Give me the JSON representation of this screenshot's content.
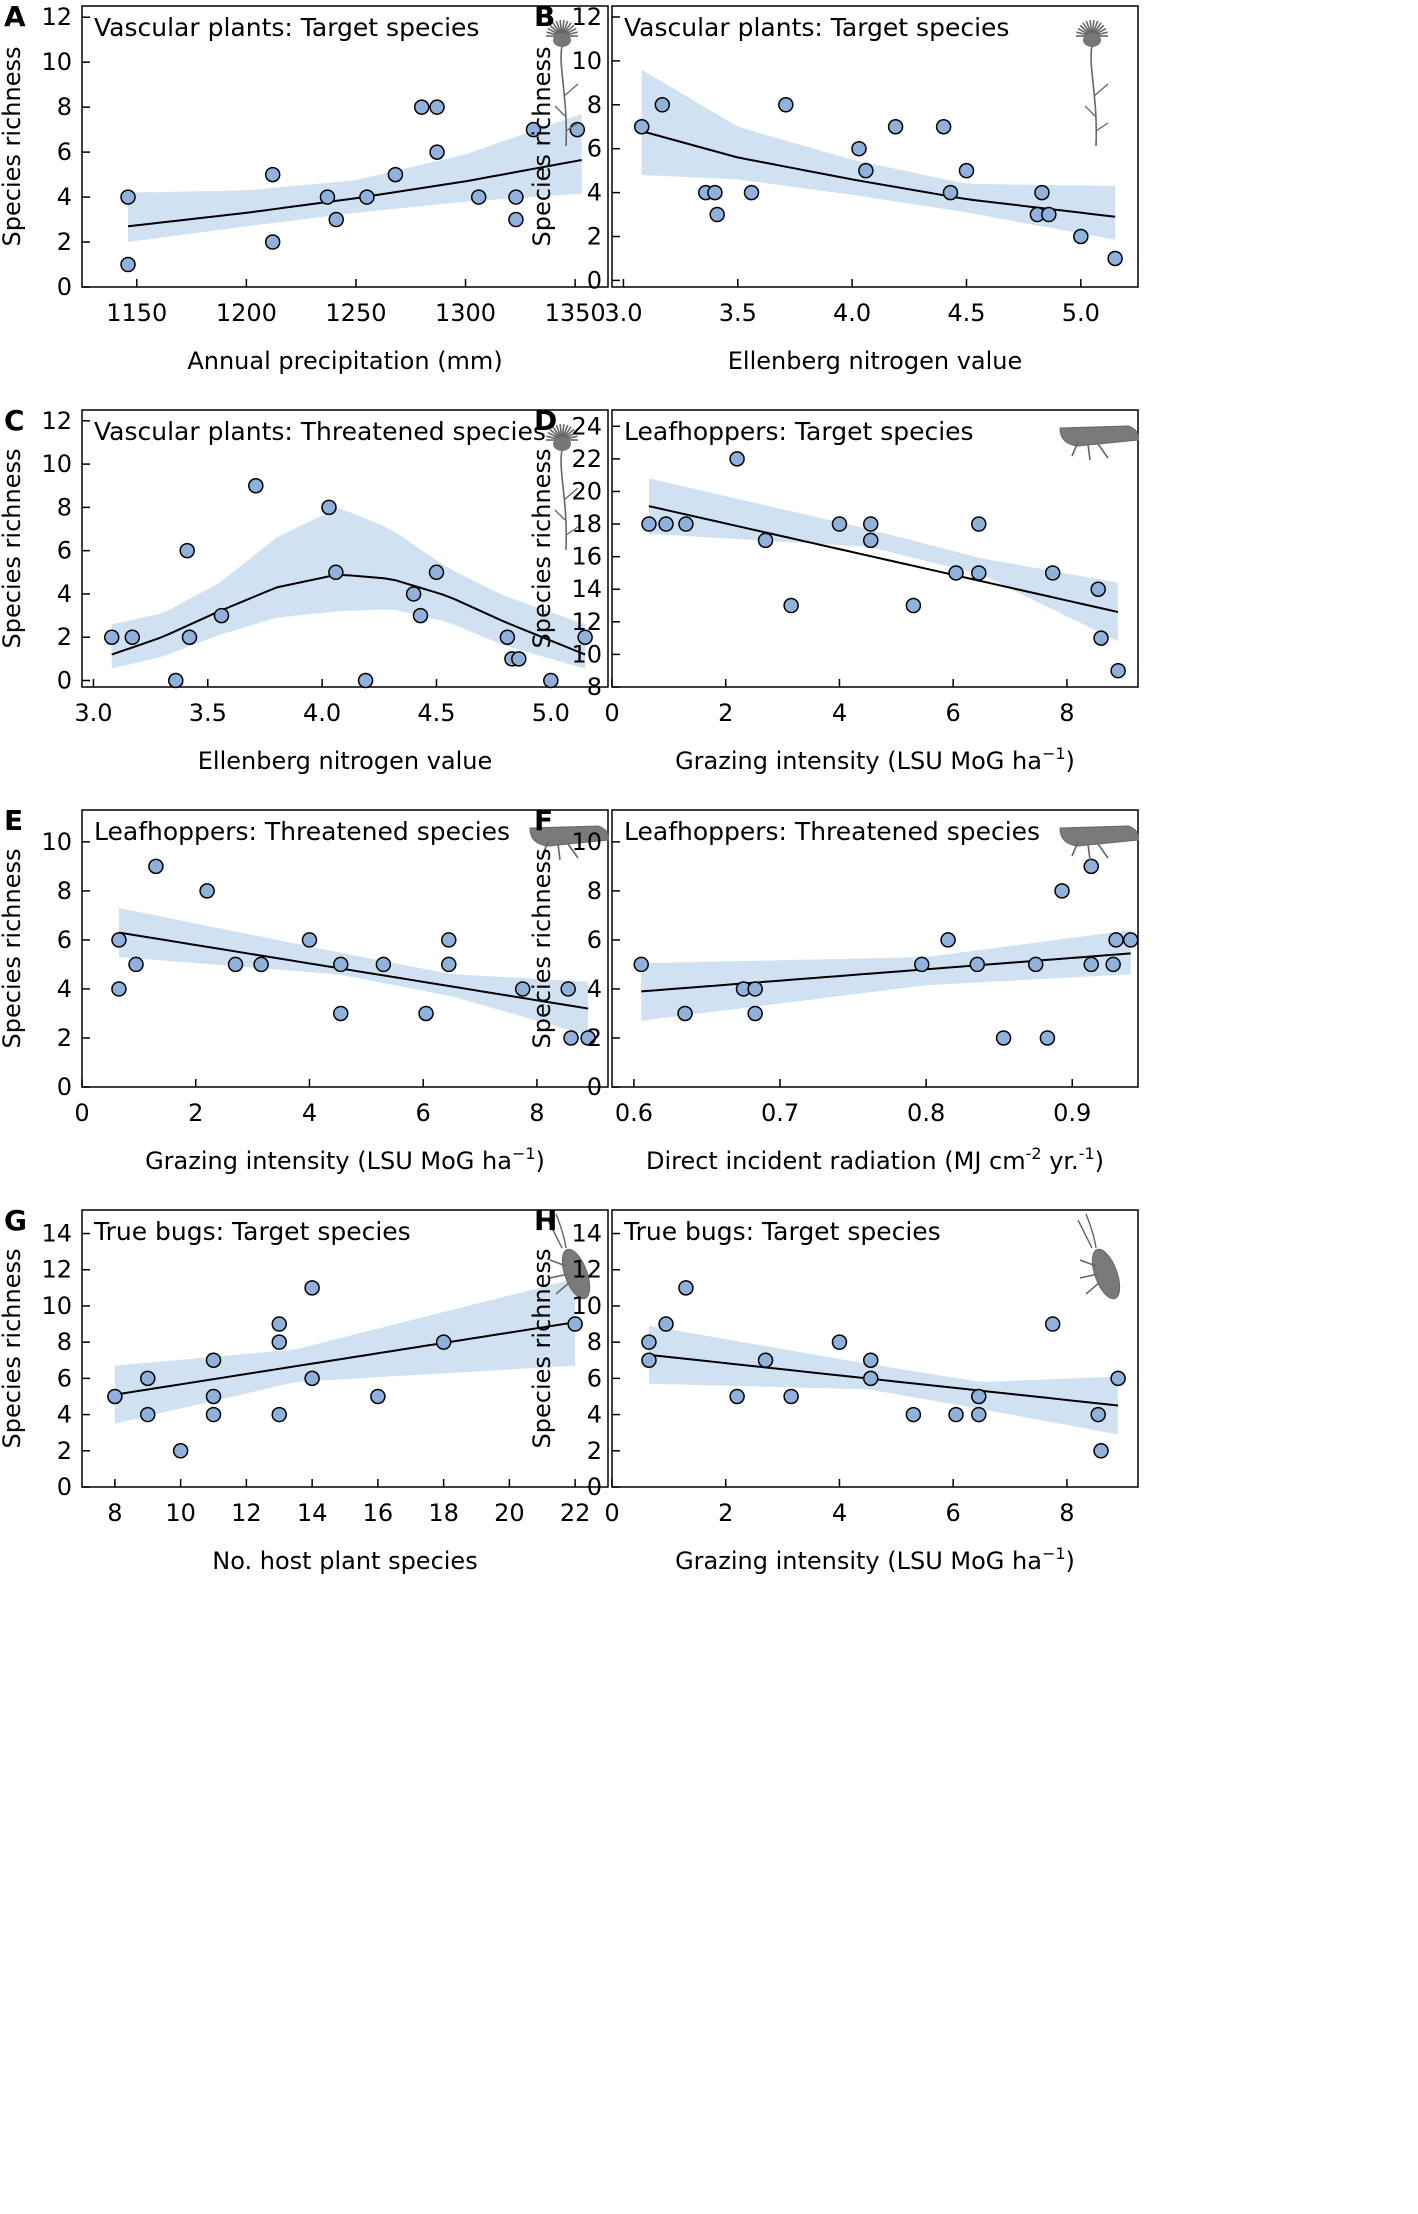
{
  "chart_data": [
    {
      "type": "scatter",
      "panel": "A",
      "title": "Vascular plants: Target species",
      "xlabel": "Annual precipitation (mm)",
      "ylabel": "Species richness",
      "xlim": [
        1125,
        1365
      ],
      "ylim": [
        0,
        12.5
      ],
      "xticks": [
        1150,
        1200,
        1250,
        1300,
        1350
      ],
      "yticks": [
        0,
        2,
        4,
        6,
        8,
        10,
        12
      ],
      "icon": "plant-icon",
      "points": {
        "x": [
          1146,
          1146,
          1212,
          1212,
          1237,
          1241,
          1255,
          1268,
          1280,
          1287,
          1287,
          1306,
          1323,
          1323,
          1331,
          1351
        ],
        "y": [
          4,
          1,
          5,
          2,
          4,
          3,
          4,
          5,
          8,
          8,
          6,
          4,
          4,
          3,
          7,
          7
        ]
      },
      "fit": {
        "x": [
          1146,
          1200,
          1250,
          1300,
          1353
        ],
        "y": [
          2.7,
          3.3,
          3.95,
          4.7,
          5.65
        ]
      },
      "ci_lower": [
        2.0,
        2.7,
        3.3,
        3.8,
        4.15
      ],
      "ci_upper": [
        4.2,
        4.3,
        4.75,
        5.9,
        7.7
      ]
    },
    {
      "type": "scatter",
      "panel": "B",
      "title": "Vascular plants: Target species",
      "xlabel": "Ellenberg nitrogen value",
      "ylabel": "Species richness",
      "xlim": [
        2.95,
        5.25
      ],
      "ylim": [
        -0.3,
        12.5
      ],
      "xticks": [
        "3.0",
        "3.5",
        "4.0",
        "4.5",
        "5.0"
      ],
      "yticks": [
        0,
        2,
        4,
        6,
        8,
        10,
        12
      ],
      "icon": "plant-icon",
      "points": {
        "x": [
          3.08,
          3.17,
          3.36,
          3.4,
          3.41,
          3.56,
          3.71,
          4.03,
          4.06,
          4.19,
          4.4,
          4.43,
          4.5,
          4.81,
          4.83,
          4.86,
          5.0,
          5.15
        ],
        "y": [
          7,
          8,
          4,
          4,
          3,
          4,
          8,
          6,
          5,
          7,
          7,
          4,
          5,
          3,
          4,
          3,
          2,
          1
        ]
      },
      "fit": {
        "x": [
          3.08,
          3.5,
          4.0,
          4.5,
          5.15
        ],
        "y": [
          6.8,
          5.6,
          4.6,
          3.7,
          2.9
        ]
      },
      "ci_lower": [
        4.8,
        4.6,
        3.9,
        3.1,
        1.85
      ],
      "ci_upper": [
        9.6,
        7.0,
        5.5,
        4.4,
        4.3
      ]
    },
    {
      "type": "scatter",
      "panel": "C",
      "title": "Vascular plants: Threatened species",
      "xlabel": "Ellenberg nitrogen value",
      "ylabel": "Species richness",
      "xlim": [
        2.95,
        5.25
      ],
      "ylim": [
        -0.3,
        12.5
      ],
      "xticks": [
        "3.0",
        "3.5",
        "4.0",
        "4.5",
        "5.0"
      ],
      "yticks": [
        0,
        2,
        4,
        6,
        8,
        10,
        12
      ],
      "icon": "plant-icon",
      "points": {
        "x": [
          3.08,
          3.17,
          3.36,
          3.41,
          3.42,
          3.56,
          3.71,
          4.03,
          4.06,
          4.19,
          4.4,
          4.43,
          4.5,
          4.81,
          4.83,
          4.86,
          5.0,
          5.15
        ],
        "y": [
          2,
          2,
          0,
          6,
          2,
          3,
          9,
          8,
          5,
          0,
          4,
          3,
          5,
          2,
          1,
          1,
          0,
          2
        ]
      },
      "fit": {
        "x": [
          3.08,
          3.3,
          3.55,
          3.8,
          4.07,
          4.3,
          4.55,
          4.8,
          5.15
        ],
        "y": [
          1.2,
          2.0,
          3.2,
          4.3,
          4.9,
          4.7,
          3.9,
          2.7,
          1.2
        ]
      },
      "ci_lower": [
        0.55,
        1.1,
        2.1,
        2.9,
        3.2,
        3.3,
        2.7,
        1.6,
        0.55
      ],
      "ci_upper": [
        2.6,
        3.1,
        4.5,
        6.6,
        8.0,
        7.0,
        5.2,
        3.9,
        2.6
      ]
    },
    {
      "type": "scatter",
      "panel": "D",
      "title": "Leafhoppers: Target species",
      "xlabel": "Grazing intensity (LSU MoG ha",
      "xlabel_superscript": "−1",
      "xlabel_suffix": ")",
      "ylabel": "Species richness",
      "xlim": [
        0,
        9.25
      ],
      "ylim": [
        8,
        25
      ],
      "xticks": [
        0,
        2,
        4,
        6,
        8
      ],
      "yticks": [
        8,
        10,
        12,
        14,
        16,
        18,
        20,
        22,
        24
      ],
      "icon": "leafhopper-icon",
      "points": {
        "x": [
          0.65,
          0.95,
          1.3,
          2.2,
          2.7,
          3.15,
          4.0,
          4.55,
          4.55,
          5.3,
          6.05,
          6.45,
          6.45,
          7.75,
          8.55,
          8.6,
          8.9
        ],
        "y": [
          18,
          18,
          18,
          22,
          17,
          13,
          18,
          18,
          17,
          13,
          15,
          15,
          18,
          15,
          14,
          11,
          9
        ]
      },
      "fit": {
        "x": [
          0.65,
          8.9
        ],
        "y": [
          19.1,
          12.6
        ]
      },
      "ci_lower": [
        17.4,
        16.6,
        14.9,
        10.8
      ],
      "ci_upper": [
        20.8,
        17.7,
        15.9,
        14.4
      ],
      "ci_x": [
        0.65,
        4.5,
        6.5,
        8.9
      ]
    },
    {
      "type": "scatter",
      "panel": "E",
      "title": "Leafhoppers: Threatened species",
      "xlabel": "Grazing intensity (LSU MoG ha",
      "xlabel_superscript": "−1",
      "xlabel_suffix": ")",
      "ylabel": "Species richness",
      "xlim": [
        0,
        9.25
      ],
      "ylim": [
        0,
        11.3
      ],
      "xticks": [
        0,
        2,
        4,
        6,
        8
      ],
      "yticks": [
        0,
        2,
        4,
        6,
        8,
        10
      ],
      "icon": "leafhopper-icon",
      "points": {
        "x": [
          0.65,
          0.65,
          0.95,
          1.3,
          2.2,
          2.7,
          3.15,
          4.0,
          4.55,
          4.55,
          5.3,
          6.05,
          6.45,
          6.45,
          7.75,
          8.55,
          8.6,
          8.9
        ],
        "y": [
          6,
          4,
          5,
          9,
          8,
          5,
          5,
          6,
          3,
          5,
          5,
          3,
          6,
          5,
          4,
          4,
          2,
          2
        ]
      },
      "fit": {
        "x": [
          0.65,
          8.9
        ],
        "y": [
          6.3,
          3.2
        ]
      },
      "ci_lower": [
        5.3,
        4.6,
        3.7,
        2.1
      ],
      "ci_upper": [
        7.3,
        5.5,
        4.6,
        4.3
      ],
      "ci_x": [
        0.65,
        4.5,
        6.5,
        8.9
      ]
    },
    {
      "type": "scatter",
      "panel": "F",
      "title": "Leafhoppers: Threatened species",
      "xlabel": "Direct incident radiation (MJ cm",
      "xlabel_superscript": "-2",
      "xlabel_mid": " yr.",
      "xlabel_superscript2": "-1",
      "xlabel_suffix": ")",
      "ylabel": "Species richness",
      "xlim": [
        0.585,
        0.945
      ],
      "ylim": [
        0,
        11.3
      ],
      "xticks": [
        "0.6",
        "0.7",
        "0.8",
        "0.9"
      ],
      "yticks": [
        0,
        2,
        4,
        6,
        8,
        10
      ],
      "icon": "leafhopper-icon",
      "points": {
        "x": [
          0.605,
          0.635,
          0.675,
          0.683,
          0.683,
          0.797,
          0.815,
          0.835,
          0.853,
          0.875,
          0.883,
          0.893,
          0.913,
          0.913,
          0.928,
          0.93,
          0.94
        ],
        "y": [
          5,
          3,
          4,
          4,
          3,
          5,
          6,
          5,
          2,
          5,
          2,
          8,
          9,
          5,
          5,
          6,
          6
        ]
      },
      "fit": {
        "x": [
          0.605,
          0.94
        ],
        "y": [
          3.9,
          5.45
        ]
      },
      "ci_lower": [
        2.7,
        4.15,
        4.6
      ],
      "ci_upper": [
        5.05,
        5.3,
        6.4
      ],
      "ci_x": [
        0.605,
        0.8,
        0.94
      ]
    },
    {
      "type": "scatter",
      "panel": "G",
      "title": "True bugs: Target species",
      "xlabel": "No. host plant species",
      "ylabel": "Species richness",
      "xlim": [
        7,
        23
      ],
      "ylim": [
        0,
        15.3
      ],
      "xticks": [
        8,
        10,
        12,
        14,
        16,
        18,
        20,
        22
      ],
      "yticks": [
        0,
        2,
        4,
        6,
        8,
        10,
        12,
        14
      ],
      "icon": "true-bug-icon",
      "points": {
        "x": [
          8,
          9,
          9,
          10,
          11,
          11,
          11,
          13,
          13,
          13,
          14,
          14,
          16,
          18,
          22
        ],
        "y": [
          5,
          6,
          4,
          2,
          7,
          5,
          4,
          9,
          8,
          4,
          11,
          6,
          5,
          8,
          9
        ]
      },
      "fit": {
        "x": [
          8,
          22
        ],
        "y": [
          5.1,
          9.1
        ]
      },
      "ci_lower": [
        3.5,
        5.8,
        6.7
      ],
      "ci_upper": [
        6.7,
        7.6,
        11.5
      ],
      "ci_x": [
        8,
        13.5,
        22
      ]
    },
    {
      "type": "scatter",
      "panel": "H",
      "title": "True bugs: Target species",
      "xlabel": "Grazing intensity (LSU MoG ha",
      "xlabel_superscript": "−1",
      "xlabel_suffix": ")",
      "ylabel": "Species richness",
      "xlim": [
        0,
        9.25
      ],
      "ylim": [
        0,
        15.3
      ],
      "xticks": [
        0,
        2,
        4,
        6,
        8
      ],
      "yticks": [
        0,
        2,
        4,
        6,
        8,
        10,
        12,
        14
      ],
      "icon": "true-bug-icon",
      "points": {
        "x": [
          0.65,
          0.65,
          0.95,
          1.3,
          2.2,
          2.7,
          3.15,
          4.0,
          4.55,
          4.55,
          5.3,
          6.05,
          6.45,
          6.45,
          7.75,
          8.55,
          8.6,
          8.9
        ],
        "y": [
          8,
          7,
          9,
          11,
          5,
          7,
          5,
          8,
          7,
          6,
          4,
          4,
          5,
          4,
          9,
          4,
          2,
          6
        ]
      },
      "fit": {
        "x": [
          0.65,
          8.9
        ],
        "y": [
          7.3,
          4.5
        ]
      },
      "ci_lower": [
        5.7,
        5.4,
        4.3,
        2.9
      ],
      "ci_upper": [
        8.9,
        6.8,
        5.8,
        6.1
      ],
      "ci_x": [
        0.65,
        4.5,
        6.5,
        8.9
      ]
    }
  ]
}
